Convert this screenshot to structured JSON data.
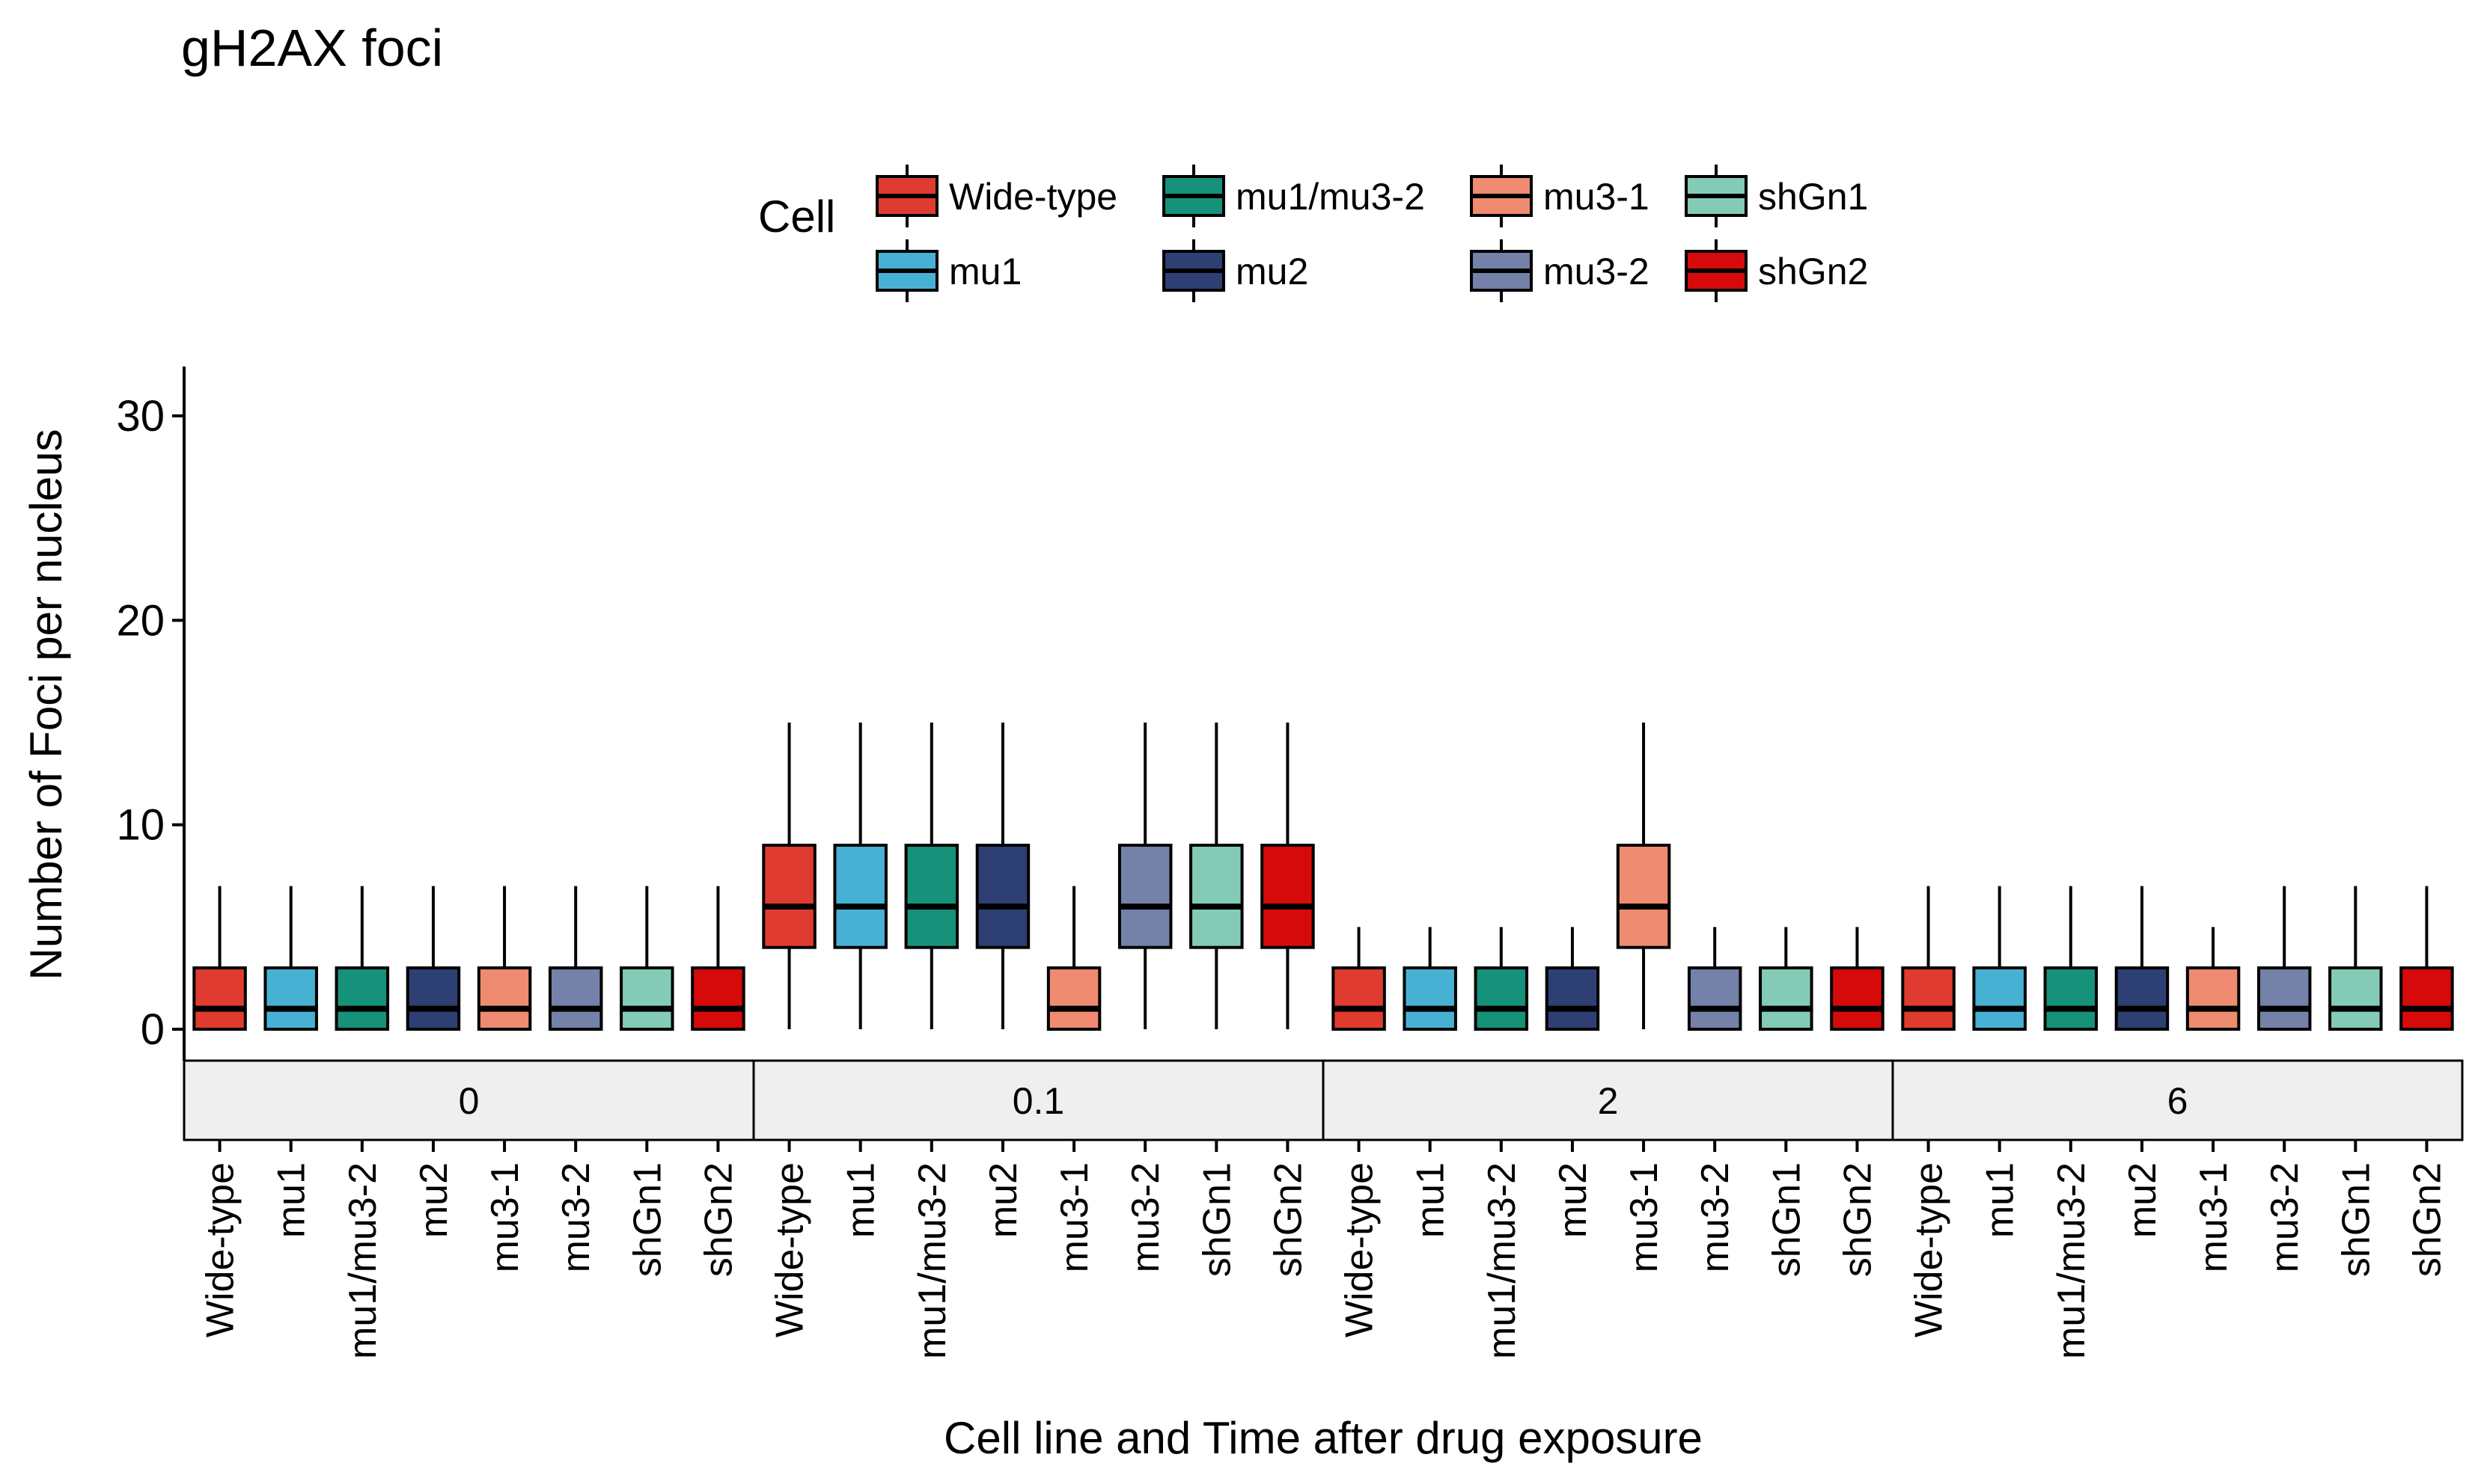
{
  "chart_data": {
    "type": "box",
    "title": "gH2AX foci",
    "xlabel": "Cell line and Time after drug exposure",
    "ylabel": "Number of Foci per nucleus",
    "yticks": [
      0,
      10,
      20,
      30
    ],
    "ylim": [
      -1.5,
      30.5
    ],
    "legend": {
      "title": "Cell",
      "position": "top",
      "entries": [
        "Wide-type",
        "mu1",
        "mu1/mu3-2",
        "mu2",
        "mu3-1",
        "mu3-2",
        "shGn1",
        "shGn2"
      ]
    },
    "groups": [
      "Wide-type",
      "mu1",
      "mu1/mu3-2",
      "mu2",
      "mu3-1",
      "mu3-2",
      "shGn1",
      "shGn2"
    ],
    "colors": {
      "Wide-type": "#E03B30",
      "mu1": "#47B1D4",
      "mu1/mu3-2": "#16917A",
      "mu2": "#2E3F73",
      "mu3-1": "#EE8B70",
      "mu3-2": "#7481A9",
      "shGn1": "#84CBB7",
      "shGn2": "#D70A0B"
    },
    "panels": [
      {
        "label": "0",
        "boxes": [
          {
            "group": "Wide-type",
            "min": 0,
            "q1": 0,
            "median": 1,
            "q3": 3,
            "max": 7
          },
          {
            "group": "mu1",
            "min": 0,
            "q1": 0,
            "median": 1,
            "q3": 3,
            "max": 7
          },
          {
            "group": "mu1/mu3-2",
            "min": 0,
            "q1": 0,
            "median": 1,
            "q3": 3,
            "max": 7
          },
          {
            "group": "mu2",
            "min": 0,
            "q1": 0,
            "median": 1,
            "q3": 3,
            "max": 7
          },
          {
            "group": "mu3-1",
            "min": 0,
            "q1": 0,
            "median": 1,
            "q3": 3,
            "max": 7
          },
          {
            "group": "mu3-2",
            "min": 0,
            "q1": 0,
            "median": 1,
            "q3": 3,
            "max": 7
          },
          {
            "group": "shGn1",
            "min": 0,
            "q1": 0,
            "median": 1,
            "q3": 3,
            "max": 7
          },
          {
            "group": "shGn2",
            "min": 0,
            "q1": 0,
            "median": 1,
            "q3": 3,
            "max": 7
          }
        ]
      },
      {
        "label": "0.1",
        "boxes": [
          {
            "group": "Wide-type",
            "min": 0,
            "q1": 4,
            "median": 6,
            "q3": 9,
            "max": 15
          },
          {
            "group": "mu1",
            "min": 0,
            "q1": 4,
            "median": 6,
            "q3": 9,
            "max": 15
          },
          {
            "group": "mu1/mu3-2",
            "min": 0,
            "q1": 4,
            "median": 6,
            "q3": 9,
            "max": 15
          },
          {
            "group": "mu2",
            "min": 0,
            "q1": 4,
            "median": 6,
            "q3": 9,
            "max": 15
          },
          {
            "group": "mu3-1",
            "min": 0,
            "q1": 0,
            "median": 1,
            "q3": 3,
            "max": 7
          },
          {
            "group": "mu3-2",
            "min": 0,
            "q1": 4,
            "median": 6,
            "q3": 9,
            "max": 15
          },
          {
            "group": "shGn1",
            "min": 0,
            "q1": 4,
            "median": 6,
            "q3": 9,
            "max": 15
          },
          {
            "group": "shGn2",
            "min": 0,
            "q1": 4,
            "median": 6,
            "q3": 9,
            "max": 15
          }
        ]
      },
      {
        "label": "2",
        "boxes": [
          {
            "group": "Wide-type",
            "min": 0,
            "q1": 0,
            "median": 1,
            "q3": 3,
            "max": 5
          },
          {
            "group": "mu1",
            "min": 0,
            "q1": 0,
            "median": 1,
            "q3": 3,
            "max": 5
          },
          {
            "group": "mu1/mu3-2",
            "min": 0,
            "q1": 0,
            "median": 1,
            "q3": 3,
            "max": 5
          },
          {
            "group": "mu2",
            "min": 0,
            "q1": 0,
            "median": 1,
            "q3": 3,
            "max": 5
          },
          {
            "group": "mu3-1",
            "min": 0,
            "q1": 4,
            "median": 6,
            "q3": 9,
            "max": 15
          },
          {
            "group": "mu3-2",
            "min": 0,
            "q1": 0,
            "median": 1,
            "q3": 3,
            "max": 5
          },
          {
            "group": "shGn1",
            "min": 0,
            "q1": 0,
            "median": 1,
            "q3": 3,
            "max": 5
          },
          {
            "group": "shGn2",
            "min": 0,
            "q1": 0,
            "median": 1,
            "q3": 3,
            "max": 5
          }
        ]
      },
      {
        "label": "6",
        "boxes": [
          {
            "group": "Wide-type",
            "min": 0,
            "q1": 0,
            "median": 1,
            "q3": 3,
            "max": 7
          },
          {
            "group": "mu1",
            "min": 0,
            "q1": 0,
            "median": 1,
            "q3": 3,
            "max": 7
          },
          {
            "group": "mu1/mu3-2",
            "min": 0,
            "q1": 0,
            "median": 1,
            "q3": 3,
            "max": 7
          },
          {
            "group": "mu2",
            "min": 0,
            "q1": 0,
            "median": 1,
            "q3": 3,
            "max": 7
          },
          {
            "group": "mu3-1",
            "min": 0,
            "q1": 0,
            "median": 1,
            "q3": 3,
            "max": 5
          },
          {
            "group": "mu3-2",
            "min": 0,
            "q1": 0,
            "median": 1,
            "q3": 3,
            "max": 7
          },
          {
            "group": "shGn1",
            "min": 0,
            "q1": 0,
            "median": 1,
            "q3": 3,
            "max": 7
          },
          {
            "group": "shGn2",
            "min": 0,
            "q1": 0,
            "median": 1,
            "q3": 3,
            "max": 7
          }
        ]
      }
    ]
  }
}
